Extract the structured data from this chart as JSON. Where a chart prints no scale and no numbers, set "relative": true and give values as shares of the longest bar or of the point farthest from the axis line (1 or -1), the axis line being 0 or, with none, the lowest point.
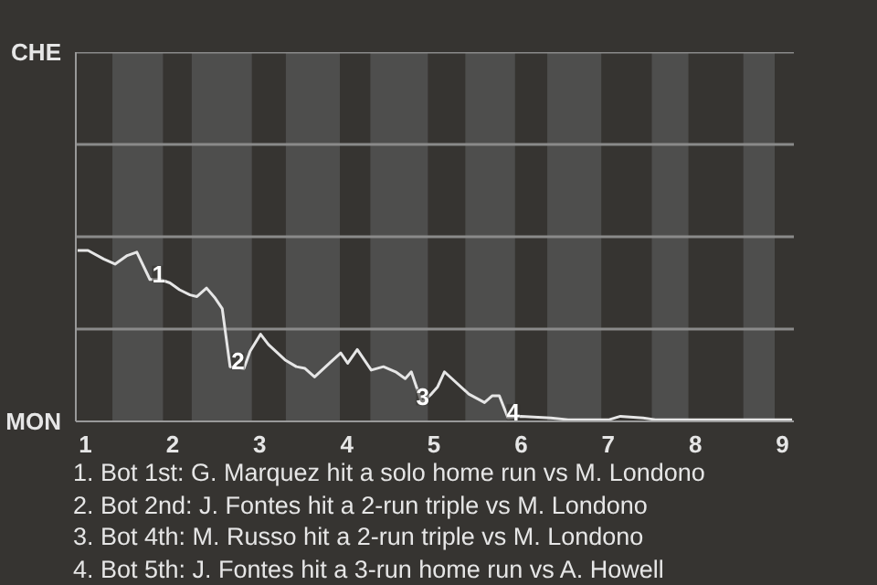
{
  "chart_data": {
    "type": "line",
    "relative": true,
    "x": [
      0.91,
      1.03,
      1.21,
      1.34,
      1.48,
      1.59,
      1.74,
      1.86,
      1.97,
      2.08,
      2.2,
      2.28,
      2.39,
      2.49,
      2.57,
      2.66,
      2.82,
      2.89,
      3.01,
      3.1,
      3.29,
      3.42,
      3.52,
      3.63,
      3.8,
      3.93,
      4.01,
      4.12,
      4.28,
      4.42,
      4.56,
      4.67,
      4.74,
      4.86,
      4.97,
      5.04,
      5.12,
      5.4,
      5.58,
      5.67,
      5.75,
      5.85,
      6.0,
      6.34,
      6.54,
      7.01,
      7.14,
      7.4,
      7.54,
      9.11
    ],
    "series": [
      {
        "color": "#e6e6e6",
        "values": [
          1.0,
          1.0,
          0.95,
          0.92,
          0.97,
          0.99,
          0.83,
          0.83,
          0.81,
          0.77,
          0.74,
          0.73,
          0.78,
          0.72,
          0.66,
          0.32,
          0.31,
          0.41,
          0.51,
          0.45,
          0.36,
          0.32,
          0.31,
          0.26,
          0.34,
          0.4,
          0.34,
          0.42,
          0.3,
          0.32,
          0.29,
          0.25,
          0.29,
          0.11,
          0.16,
          0.2,
          0.29,
          0.16,
          0.11,
          0.15,
          0.15,
          0.02,
          0.03,
          0.02,
          0.01,
          0.01,
          0.03,
          0.02,
          0.01,
          0.01
        ]
      }
    ],
    "xlim": [
      0.89,
      9.13
    ],
    "xticks": [
      1,
      2,
      3,
      4,
      5,
      6,
      7,
      8,
      9
    ],
    "line_style": "solid",
    "ref_lines": [
      {
        "axis": "y",
        "value": 0.54,
        "color": "#8a8a8a"
      },
      {
        "axis": "y",
        "value": 1.08,
        "color": "#8a8a8a"
      },
      {
        "axis": "y",
        "value": 1.62,
        "color": "#8a8a8a"
      }
    ],
    "bands": [
      {
        "axis": "x",
        "from": 1.31,
        "to": 1.89,
        "color": "#4e4e4d"
      },
      {
        "axis": "x",
        "from": 2.22,
        "to": 2.91,
        "color": "#4e4e4d"
      },
      {
        "axis": "x",
        "from": 3.3,
        "to": 3.92,
        "color": "#4e4e4d"
      },
      {
        "axis": "x",
        "from": 4.27,
        "to": 4.93,
        "color": "#4e4e4d"
      },
      {
        "axis": "x",
        "from": 5.36,
        "to": 5.93,
        "color": "#4e4e4d"
      },
      {
        "axis": "x",
        "from": 6.3,
        "to": 6.92,
        "color": "#4e4e4d"
      },
      {
        "axis": "x",
        "from": 7.5,
        "to": 7.92,
        "color": "#4e4e4d"
      },
      {
        "axis": "x",
        "from": 8.55,
        "to": 8.91,
        "color": "#4e4e4d"
      }
    ],
    "annotations": [
      "CHE",
      "MON",
      {
        "text": "1",
        "x": 1.84,
        "y": 0.83
      },
      {
        "text": "2",
        "x": 2.75,
        "y": 0.32
      },
      {
        "text": "3",
        "x": 4.87,
        "y": 0.11
      },
      {
        "text": "4",
        "x": 5.91,
        "y": 0.02
      },
      "1. Bot 1st: G. Marquez hit a solo home run vs M. Londono",
      "2. Bot 2nd: J. Fontes hit a 2-run triple vs M. Londono",
      "3. Bot 4th: M. Russo hit a 2-run triple vs M. Londono",
      "4. Bot 5th: J. Fontes hit a 3-run home run vs A. Howell"
    ]
  }
}
